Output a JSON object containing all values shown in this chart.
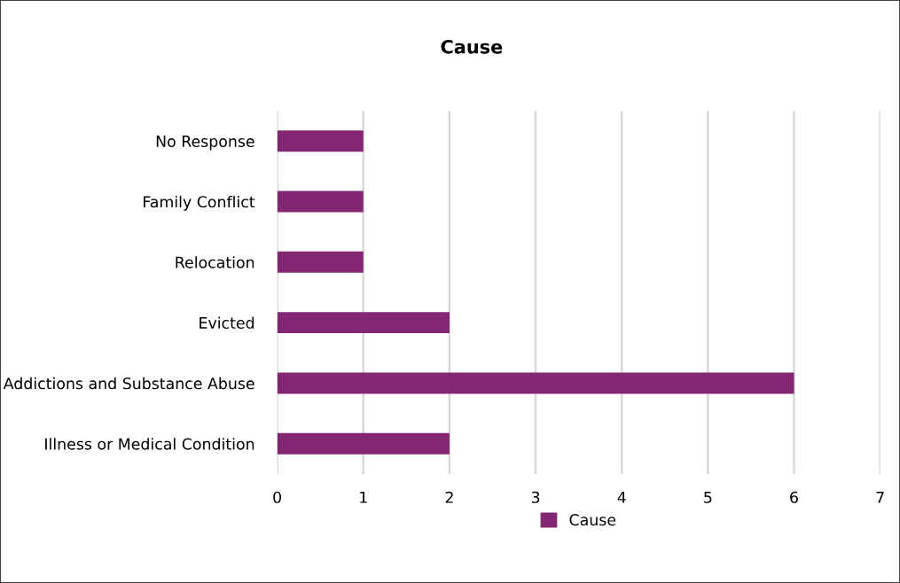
{
  "chart_data": {
    "type": "bar",
    "orientation": "horizontal",
    "title": "Cause",
    "categories": [
      "No Response",
      "Family Conflict",
      "Relocation",
      "Evicted",
      "Addictions and Substance Abuse",
      "Illness or Medical Condition"
    ],
    "series": [
      {
        "name": "Cause",
        "color": "#832773",
        "values": [
          1,
          1,
          1,
          2,
          6,
          2
        ]
      }
    ],
    "xlim": [
      0,
      7
    ],
    "xticks": [
      0,
      1,
      2,
      3,
      4,
      5,
      6,
      7
    ],
    "grid": "x",
    "legend": "bottom"
  }
}
